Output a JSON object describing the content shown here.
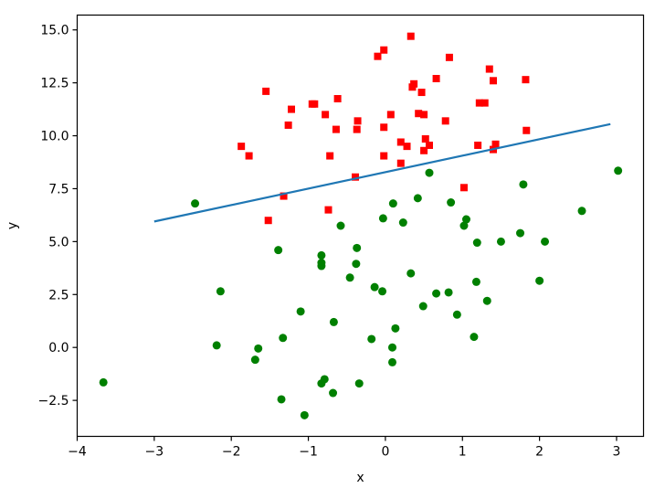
{
  "chart_data": {
    "type": "scatter",
    "title": "",
    "xlabel": "x",
    "ylabel": "y",
    "xlim": [
      -4,
      3.35
    ],
    "ylim": [
      -4.2,
      15.7
    ],
    "xticks": [
      -4,
      -3,
      -2,
      -1,
      0,
      1,
      2,
      3
    ],
    "xtick_labels": [
      "−4",
      "−3",
      "−2",
      "−1",
      "0",
      "1",
      "2",
      "3"
    ],
    "yticks": [
      -2.5,
      0.0,
      2.5,
      5.0,
      7.5,
      10.0,
      12.5,
      15.0
    ],
    "ytick_labels": [
      "−2.5",
      "0.0",
      "2.5",
      "5.0",
      "7.5",
      "10.0",
      "12.5",
      "15.0"
    ],
    "grid": false,
    "legend": false,
    "series": [
      {
        "marker": "square",
        "color": "#ff0000",
        "points": [
          [
            -1.55,
            12.1
          ],
          [
            -1.22,
            11.25
          ],
          [
            -1.26,
            10.5
          ],
          [
            -0.95,
            11.5
          ],
          [
            -0.92,
            11.5
          ],
          [
            -0.78,
            11.0
          ],
          [
            -0.62,
            11.75
          ],
          [
            -0.64,
            10.3
          ],
          [
            -0.72,
            9.05
          ],
          [
            -0.36,
            10.7
          ],
          [
            -0.37,
            10.3
          ],
          [
            -0.39,
            8.05
          ],
          [
            -0.74,
            6.5
          ],
          [
            -1.32,
            7.15
          ],
          [
            -1.52,
            6.0
          ],
          [
            -1.87,
            9.5
          ],
          [
            -1.77,
            9.05
          ],
          [
            -0.1,
            13.75
          ],
          [
            -0.02,
            14.05
          ],
          [
            0.33,
            14.7
          ],
          [
            0.07,
            11.0
          ],
          [
            -0.02,
            10.4
          ],
          [
            -0.02,
            9.05
          ],
          [
            0.2,
            9.7
          ],
          [
            0.28,
            9.5
          ],
          [
            0.2,
            8.7
          ],
          [
            0.35,
            12.3
          ],
          [
            0.37,
            12.45
          ],
          [
            0.47,
            12.05
          ],
          [
            0.43,
            11.05
          ],
          [
            0.5,
            11.0
          ],
          [
            0.52,
            9.85
          ],
          [
            0.5,
            9.3
          ],
          [
            0.57,
            9.55
          ],
          [
            0.66,
            12.7
          ],
          [
            0.78,
            10.7
          ],
          [
            0.83,
            13.7
          ],
          [
            1.02,
            7.55
          ],
          [
            1.2,
            9.55
          ],
          [
            1.22,
            11.55
          ],
          [
            1.29,
            11.55
          ],
          [
            1.35,
            13.15
          ],
          [
            1.4,
            12.6
          ],
          [
            1.4,
            9.35
          ],
          [
            1.43,
            9.6
          ],
          [
            1.82,
            12.65
          ],
          [
            1.83,
            10.25
          ]
        ]
      },
      {
        "marker": "circle",
        "color": "#008000",
        "points": [
          [
            -3.66,
            -1.65
          ],
          [
            -2.47,
            6.8
          ],
          [
            -2.19,
            0.1
          ],
          [
            -2.14,
            2.65
          ],
          [
            -1.69,
            -0.58
          ],
          [
            -1.65,
            -0.05
          ],
          [
            -1.39,
            4.6
          ],
          [
            -1.33,
            0.45
          ],
          [
            -1.35,
            -2.45
          ],
          [
            -1.1,
            1.7
          ],
          [
            -1.05,
            -3.2
          ],
          [
            -0.83,
            4.35
          ],
          [
            -0.83,
            4.0
          ],
          [
            -0.83,
            3.85
          ],
          [
            -0.83,
            -1.7
          ],
          [
            -0.79,
            -1.5
          ],
          [
            -0.67,
            1.2
          ],
          [
            -0.68,
            -2.15
          ],
          [
            -0.58,
            5.75
          ],
          [
            -0.46,
            3.3
          ],
          [
            -0.37,
            4.7
          ],
          [
            -0.38,
            3.95
          ],
          [
            -0.34,
            -1.7
          ],
          [
            -0.18,
            0.4
          ],
          [
            -0.14,
            2.85
          ],
          [
            -0.03,
            6.1
          ],
          [
            -0.04,
            2.65
          ],
          [
            0.1,
            6.8
          ],
          [
            0.09,
            0.0
          ],
          [
            0.09,
            -0.7
          ],
          [
            0.13,
            0.9
          ],
          [
            0.23,
            5.9
          ],
          [
            0.33,
            3.5
          ],
          [
            0.42,
            7.05
          ],
          [
            0.49,
            1.95
          ],
          [
            0.57,
            8.25
          ],
          [
            0.66,
            2.55
          ],
          [
            0.82,
            2.6
          ],
          [
            0.85,
            6.85
          ],
          [
            0.93,
            1.55
          ],
          [
            1.02,
            5.75
          ],
          [
            1.05,
            6.05
          ],
          [
            1.15,
            0.5
          ],
          [
            1.18,
            3.1
          ],
          [
            1.19,
            4.95
          ],
          [
            1.32,
            2.2
          ],
          [
            1.5,
            5.0
          ],
          [
            1.75,
            5.4
          ],
          [
            1.79,
            7.7
          ],
          [
            2.0,
            3.15
          ],
          [
            2.07,
            5.0
          ],
          [
            2.55,
            6.45
          ],
          [
            3.02,
            8.35
          ]
        ]
      },
      {
        "marker": "line",
        "color": "#1f77b4",
        "points": [
          [
            -3.0,
            5.95
          ],
          [
            2.92,
            10.55
          ]
        ]
      }
    ]
  }
}
